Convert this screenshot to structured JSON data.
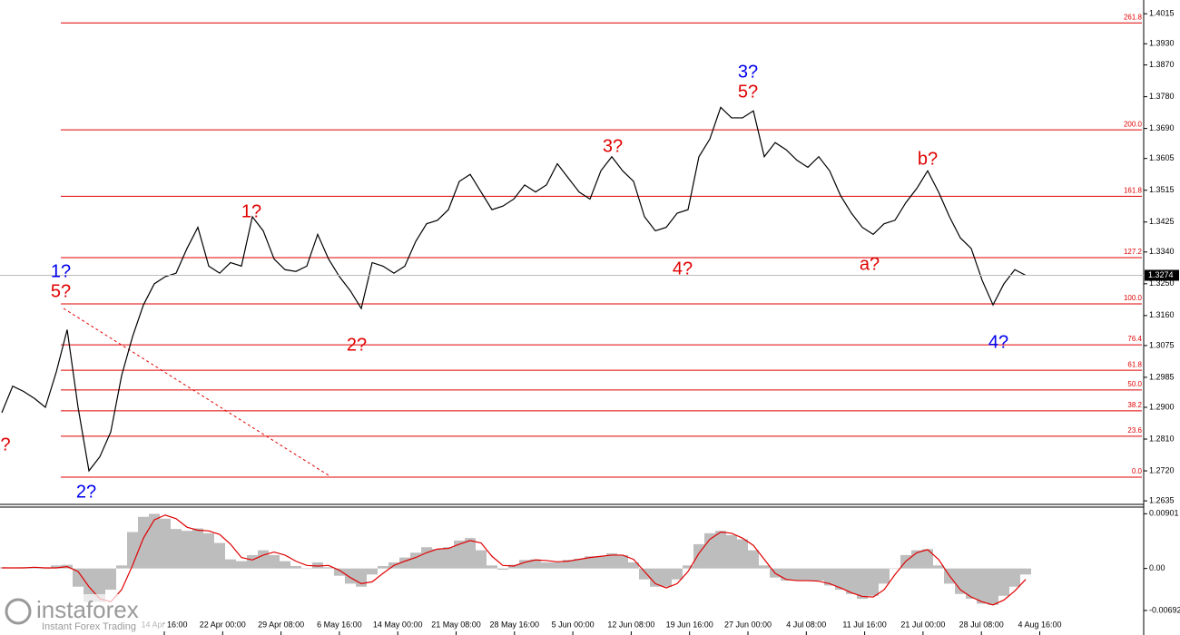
{
  "chart_data": [
    {
      "type": "line",
      "values": [
        1.2885,
        1.296,
        1.2945,
        1.2925,
        1.29,
        1.3,
        1.312,
        1.29,
        1.272,
        1.276,
        1.283,
        1.299,
        1.31,
        1.319,
        1.325,
        1.327,
        1.328,
        1.335,
        1.341,
        1.33,
        1.328,
        1.331,
        1.33,
        1.344,
        1.34,
        1.332,
        1.329,
        1.3285,
        1.33,
        1.339,
        1.332,
        1.327,
        1.323,
        1.318,
        1.331,
        1.33,
        1.328,
        1.33,
        1.337,
        1.342,
        1.343,
        1.346,
        1.354,
        1.356,
        1.351,
        1.346,
        1.347,
        1.349,
        1.353,
        1.351,
        1.353,
        1.359,
        1.355,
        1.351,
        1.349,
        1.357,
        1.361,
        1.357,
        1.354,
        1.344,
        1.34,
        1.341,
        1.345,
        1.346,
        1.361,
        1.366,
        1.375,
        1.372,
        1.372,
        1.374,
        1.361,
        1.365,
        1.363,
        1.36,
        1.358,
        1.361,
        1.357,
        1.35,
        1.345,
        1.341,
        1.339,
        1.342,
        1.343,
        1.348,
        1.352,
        1.357,
        1.351,
        1.344,
        1.338,
        1.335,
        1.326,
        1.319,
        1.325,
        1.329,
        1.3274
      ],
      "color": "#000000",
      "ylim": [
        1.2625,
        1.4054
      ],
      "yticks": [
        {
          "value": 1.4015,
          "label": "1.4015"
        },
        {
          "value": 1.393,
          "label": "1.3930"
        },
        {
          "value": 1.387,
          "label": "1.3870"
        },
        {
          "value": 1.378,
          "label": "1.3780"
        },
        {
          "value": 1.369,
          "label": "1.3690"
        },
        {
          "value": 1.3605,
          "label": "1.3605"
        },
        {
          "value": 1.3515,
          "label": "1.3515"
        },
        {
          "value": 1.3425,
          "label": "1.3425"
        },
        {
          "value": 1.334,
          "label": "1.3340"
        },
        {
          "value": 1.325,
          "label": "1.3250"
        },
        {
          "value": 1.316,
          "label": "1.3160"
        },
        {
          "value": 1.3075,
          "label": "1.3075"
        },
        {
          "value": 1.2985,
          "label": "1.2985"
        },
        {
          "value": 1.29,
          "label": "1.2900"
        },
        {
          "value": 1.281,
          "label": "1.2810"
        },
        {
          "value": 1.272,
          "label": "1.2720"
        },
        {
          "value": 1.2635,
          "label": "1.2635"
        }
      ],
      "levels": [
        {
          "value": 1.3989,
          "label": "261.8"
        },
        {
          "value": 1.3686,
          "label": "200.0"
        },
        {
          "value": 1.3498,
          "label": "161.8"
        },
        {
          "value": 1.3324,
          "label": "127.2"
        },
        {
          "value": 1.3193,
          "label": "100.0"
        },
        {
          "value": 1.3077,
          "label": "76.4"
        },
        {
          "value": 1.3005,
          "label": "61.8"
        },
        {
          "value": 1.2949,
          "label": "50.0"
        },
        {
          "value": 1.289,
          "label": "38.2"
        },
        {
          "value": 1.2818,
          "label": "23.6"
        },
        {
          "value": 1.2702,
          "label": "0.0"
        }
      ],
      "level_color": "#e00000",
      "last_price": 1.3274,
      "annotations": [
        {
          "text": "1?",
          "color": "#0000ee"
        },
        {
          "text": "5?",
          "color": "#e00000"
        },
        {
          "text": "2?",
          "color": "#0000ee"
        },
        {
          "text": "?",
          "color": "#e00000"
        },
        {
          "text": "1?",
          "color": "#e00000"
        },
        {
          "text": "2?",
          "color": "#e00000"
        },
        {
          "text": "3?",
          "color": "#e00000"
        },
        {
          "text": "4?",
          "color": "#e00000"
        },
        {
          "text": "3?",
          "color": "#0000ee"
        },
        {
          "text": "5?",
          "color": "#e00000"
        },
        {
          "text": "a?",
          "color": "#e00000"
        },
        {
          "text": "b?",
          "color": "#e00000"
        },
        {
          "text": "4?",
          "color": "#0000ee"
        }
      ],
      "time_labels": [
        "14 Apr 16:00",
        "22 Apr 00:00",
        "29 Apr 08:00",
        "6 May 16:00",
        "14 May 00:00",
        "21 May 08:00",
        "28 May 16:00",
        "5 Jun 00:00",
        "12 Jun 08:00",
        "19 Jun 16:00",
        "27 Jun 00:00",
        "4 Jul 08:00",
        "11 Jul 16:00",
        "21 Jul 00:00",
        "28 Jul 08:00",
        "4 Aug 16:00"
      ]
    },
    {
      "type": "macd",
      "histogram": {
        "color": "#bdbdbd",
        "values": [
          0.0002,
          0.0001,
          0.0002,
          0.0001,
          0.0,
          0.0005,
          0.0006,
          -0.003,
          -0.0055,
          -0.0055,
          -0.0035,
          0.0005,
          0.006,
          0.0085,
          0.009,
          0.0082,
          0.0065,
          0.0062,
          0.0066,
          0.0058,
          0.0042,
          0.0015,
          0.0012,
          0.0022,
          0.003,
          0.0022,
          0.0012,
          0.0004,
          0.0,
          0.001,
          0.0002,
          -0.0012,
          -0.0025,
          -0.003,
          -0.001,
          0.0004,
          0.001,
          0.0018,
          0.0026,
          0.0035,
          0.0032,
          0.0035,
          0.0046,
          0.005,
          0.003,
          0.0005,
          -0.0002,
          0.0006,
          0.0014,
          0.0015,
          0.001,
          0.001,
          0.0014,
          0.0016,
          0.002,
          0.002,
          0.0025,
          0.0022,
          0.001,
          -0.0018,
          -0.003,
          -0.003,
          -0.0018,
          0.0005,
          0.004,
          0.0058,
          0.0062,
          0.0055,
          0.0048,
          0.003,
          0.0005,
          -0.0015,
          -0.002,
          -0.002,
          -0.002,
          -0.002,
          -0.0028,
          -0.0035,
          -0.0042,
          -0.005,
          -0.0045,
          -0.0025,
          0.0,
          0.0022,
          0.003,
          0.0032,
          0.0005,
          -0.0025,
          -0.0042,
          -0.005,
          -0.0058,
          -0.006,
          -0.0045,
          -0.003,
          -0.001
        ]
      },
      "signal": {
        "color": "#e00000",
        "values": [
          0.0001,
          0.0001,
          0.0001,
          0.0002,
          0.0001,
          0.0001,
          0.0003,
          -0.0005,
          -0.003,
          -0.005,
          -0.0055,
          -0.0035,
          0.0005,
          0.005,
          0.008,
          0.0088,
          0.0082,
          0.0068,
          0.0063,
          0.0062,
          0.0056,
          0.004,
          0.0018,
          0.0014,
          0.0022,
          0.0027,
          0.0022,
          0.0012,
          0.0005,
          0.0004,
          0.0005,
          -0.0003,
          -0.0015,
          -0.0025,
          -0.0022,
          -0.0008,
          0.0005,
          0.0012,
          0.0018,
          0.0026,
          0.0032,
          0.0033,
          0.004,
          0.0046,
          0.0042,
          0.002,
          0.0005,
          0.0004,
          0.001,
          0.0014,
          0.0013,
          0.0011,
          0.0012,
          0.0015,
          0.0018,
          0.002,
          0.0022,
          0.0022,
          0.0015,
          -0.0005,
          -0.0025,
          -0.0032,
          -0.0025,
          -0.0005,
          0.0025,
          0.0048,
          0.006,
          0.0058,
          0.005,
          0.0038,
          0.0015,
          -0.0008,
          -0.0018,
          -0.002,
          -0.002,
          -0.0021,
          -0.0025,
          -0.0032,
          -0.004,
          -0.0046,
          -0.0047,
          -0.0035,
          -0.001,
          0.0012,
          0.0026,
          0.0031,
          0.0015,
          -0.0012,
          -0.0035,
          -0.0047,
          -0.0055,
          -0.006,
          -0.0052,
          -0.0037,
          -0.0018
        ]
      },
      "ylim": [
        -0.01066,
        0.00996
      ],
      "yticks": [
        0.00901,
        {
          "value": 0,
          "label": "0.00"
        },
        -0.00692
      ]
    }
  ],
  "watermark": {
    "name": "instaforex",
    "tagline": "Instant Forex Trading"
  }
}
